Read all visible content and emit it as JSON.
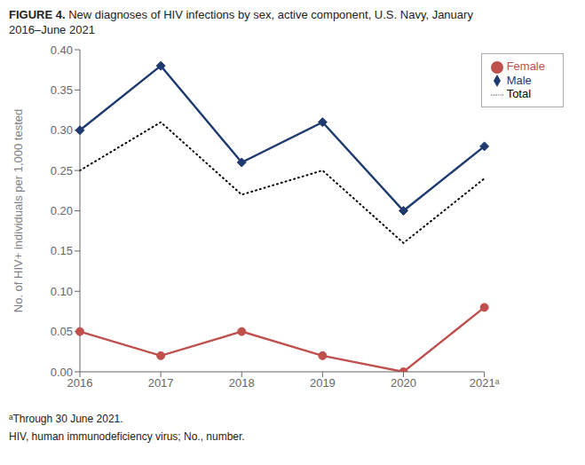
{
  "chart_data": {
    "type": "line",
    "title": "FIGURE 4. New diagnoses of HIV infections by sex, active component, U.S. Navy, January\n2016–June 2021",
    "y_label": "No. of HIV+ individuals per 1,000 tested",
    "categories": [
      "2016",
      "2017",
      "2018",
      "2019",
      "2020",
      "2021ᵃ"
    ],
    "series": [
      {
        "name": "Male",
        "color": "#1e3a6e",
        "marker": "diamond",
        "line_style": "solid",
        "values": [
          0.3,
          0.38,
          0.26,
          0.31,
          0.2,
          0.28
        ]
      },
      {
        "name": "Female",
        "color": "#c0504d",
        "marker": "circle",
        "line_style": "solid",
        "values": [
          0.05,
          0.02,
          0.05,
          0.02,
          0.0,
          0.08
        ]
      },
      {
        "name": "Total",
        "color": "#000000",
        "marker": "none",
        "line_style": "dotted",
        "values": [
          0.25,
          0.31,
          0.22,
          0.25,
          0.16,
          0.24
        ]
      }
    ],
    "ylim": [
      0.0,
      0.4
    ],
    "yticks": [
      {
        "value": 0.0,
        "label": "0.00"
      },
      0.05,
      {
        "value": 0.1,
        "label": "0.10"
      },
      0.15,
      {
        "value": 0.2,
        "label": "0.20"
      },
      0.25,
      {
        "value": 0.3,
        "label": "0.30"
      },
      0.35,
      {
        "value": 0.4,
        "label": "0.40"
      }
    ],
    "grid": false,
    "legend": "upper right",
    "annotations": [
      "ᵃThrough 30 June 2021.",
      "HIV, human immunodeficiency virus; No., number."
    ]
  }
}
